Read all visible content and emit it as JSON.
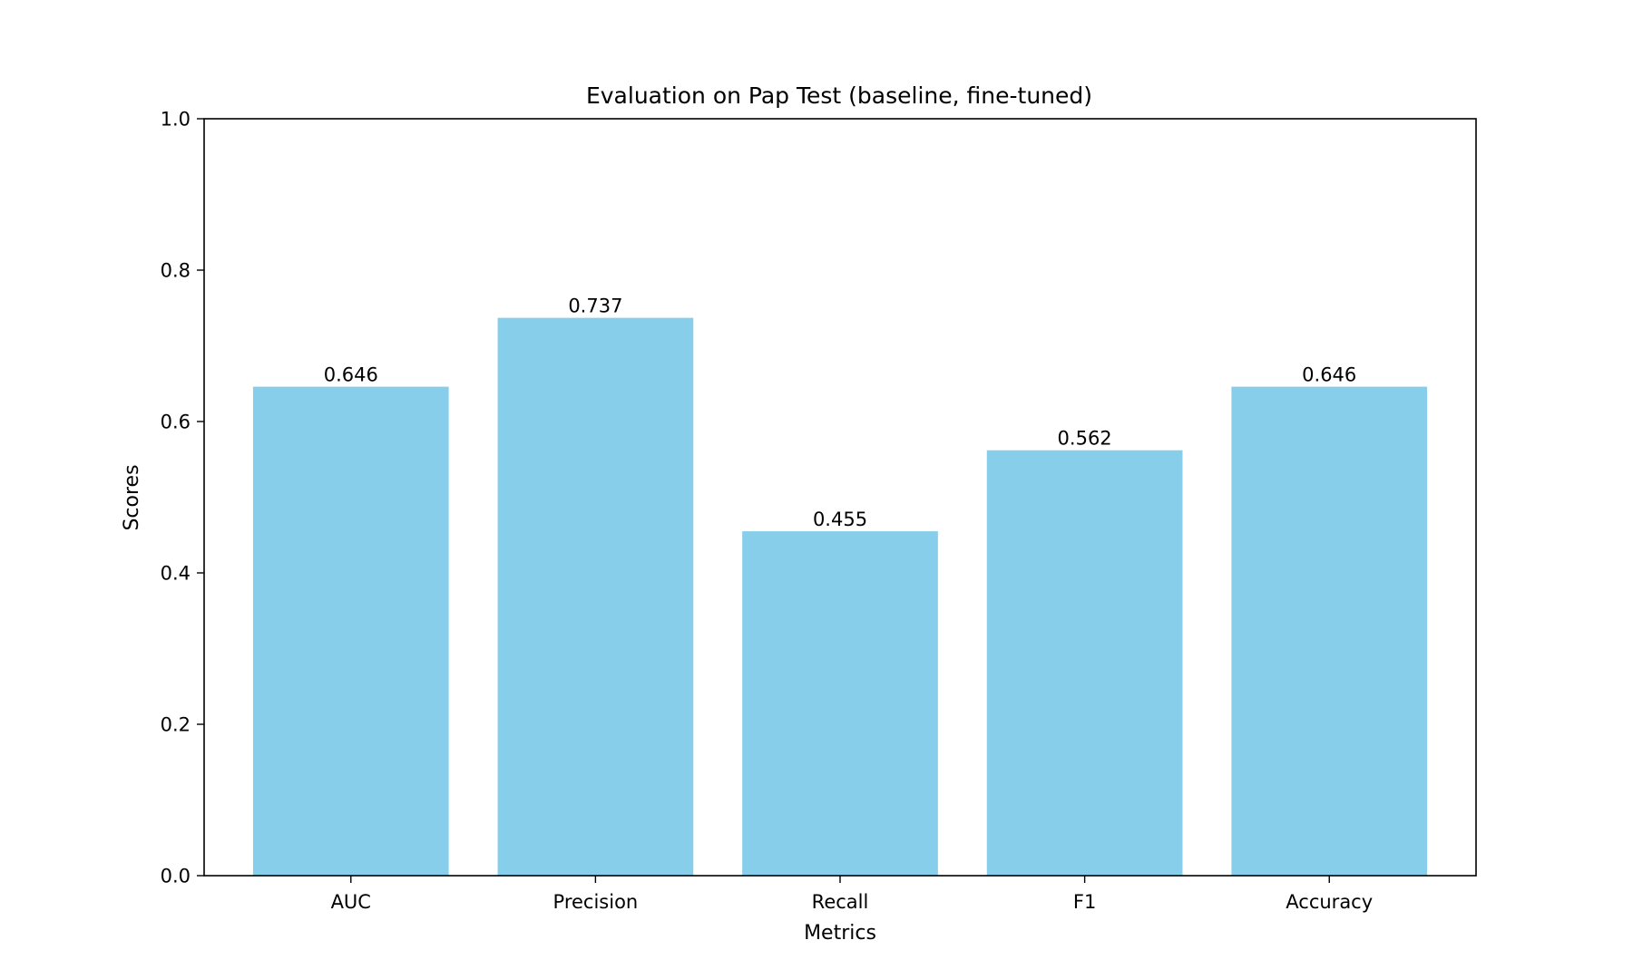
{
  "chart_data": {
    "type": "bar",
    "title": "Evaluation on Pap Test (baseline, fine-tuned)",
    "xlabel": "Metrics",
    "ylabel": "Scores",
    "categories": [
      "AUC",
      "Precision",
      "Recall",
      "F1",
      "Accuracy"
    ],
    "values": [
      0.646,
      0.737,
      0.455,
      0.562,
      0.646
    ],
    "data_labels": [
      "0.646",
      "0.737",
      "0.455",
      "0.562",
      "0.646"
    ],
    "ylim": [
      0,
      1.0
    ],
    "yticks": [
      "0.0",
      "0.2",
      "0.4",
      "0.6",
      "0.8",
      "1.0"
    ],
    "bar_color": "#87CEEB",
    "grid": false,
    "legend": "none"
  }
}
